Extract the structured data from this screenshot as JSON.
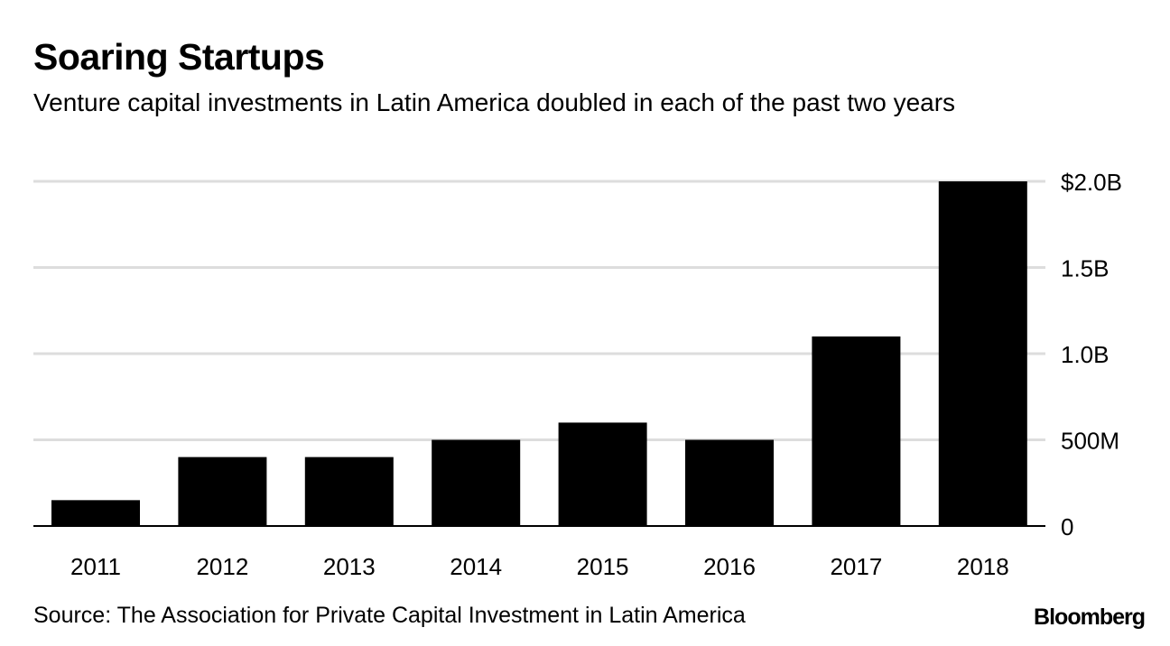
{
  "title": "Soaring Startups",
  "subtitle": "Venture capital investments in Latin America doubled in each of the past two years",
  "source": "Source: The Association for Private Capital Investment in Latin America",
  "logo": "Bloomberg",
  "chart_data": {
    "type": "bar",
    "categories": [
      "2011",
      "2012",
      "2013",
      "2014",
      "2015",
      "2016",
      "2017",
      "2018"
    ],
    "values": [
      0.15,
      0.4,
      0.4,
      0.5,
      0.6,
      0.5,
      1.1,
      2.0
    ],
    "unit": "billion USD",
    "ylim": [
      0,
      2.0
    ],
    "yticks": [
      0,
      0.5,
      1.0,
      1.5,
      2.0
    ],
    "ytick_labels": [
      "0",
      "500M",
      "1.0B",
      "1.5B",
      "$2.0B"
    ],
    "yaxis_position": "right",
    "grid": true,
    "bar_color": "#000000",
    "grid_color": "#dddddd"
  }
}
